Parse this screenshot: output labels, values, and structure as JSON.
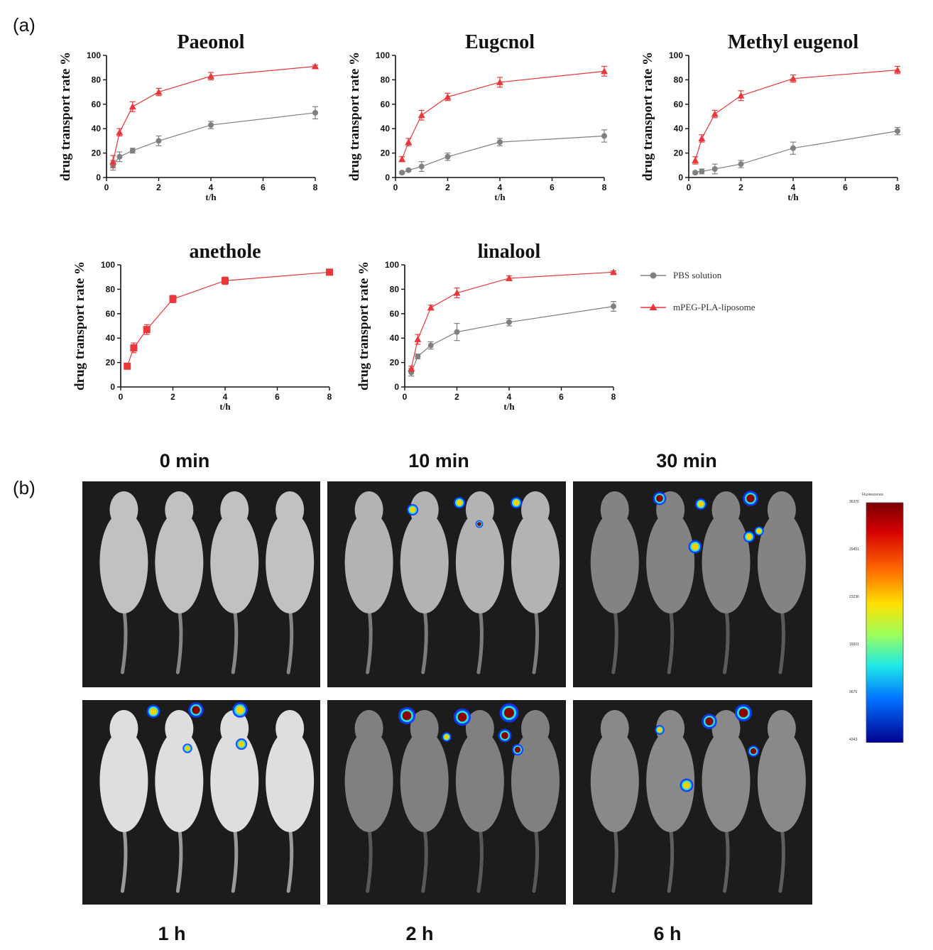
{
  "panels": {
    "a": "(a)",
    "b": "(b)"
  },
  "legend": {
    "entries": [
      {
        "name": "PBS solution",
        "color": "#808080",
        "marker": "circle"
      },
      {
        "name": "mPEG-PLA-liposome",
        "color": "#e8383b",
        "marker": "triangle"
      }
    ]
  },
  "colors": {
    "pbs": "#808080",
    "liposome": "#e8383b",
    "background": "#ffffff"
  },
  "chart_data": [
    {
      "type": "line",
      "title": "Paeonol",
      "xlabel": "t/h",
      "ylabel": "drug transport rate %",
      "xlim": [
        0,
        8
      ],
      "ylim": [
        0,
        100
      ],
      "xticks": [
        0,
        2,
        4,
        6,
        8
      ],
      "yticks": [
        0,
        20,
        40,
        60,
        80,
        100
      ],
      "series": [
        {
          "name": "PBS solution",
          "marker": "circle",
          "color": "#808080",
          "x": [
            0.25,
            0.5,
            1,
            2,
            4,
            8
          ],
          "y": [
            10,
            17,
            22,
            30,
            43,
            53
          ],
          "err": [
            4,
            4,
            2,
            4,
            3,
            5
          ]
        },
        {
          "name": "mPEG-PLA-liposome",
          "marker": "triangle",
          "color": "#e8383b",
          "x": [
            0.25,
            0.5,
            1,
            2,
            4,
            8
          ],
          "y": [
            13,
            37,
            58,
            70,
            83,
            91
          ],
          "err": [
            5,
            3,
            4,
            3,
            3,
            1
          ]
        }
      ]
    },
    {
      "type": "line",
      "title": "Eugcnol",
      "xlabel": "t/h",
      "ylabel": "drug transport rate %",
      "xlim": [
        0,
        8
      ],
      "ylim": [
        0,
        100
      ],
      "xticks": [
        0,
        2,
        4,
        6,
        8
      ],
      "yticks": [
        0,
        20,
        40,
        60,
        80,
        100
      ],
      "series": [
        {
          "name": "PBS solution",
          "marker": "circle",
          "color": "#808080",
          "x": [
            0.25,
            0.5,
            1,
            2,
            4,
            8
          ],
          "y": [
            4,
            6,
            9,
            17,
            29,
            34
          ],
          "err": [
            1,
            1,
            4,
            3,
            3,
            5
          ]
        },
        {
          "name": "mPEG-PLA-liposome",
          "marker": "triangle",
          "color": "#e8383b",
          "x": [
            0.25,
            0.5,
            1,
            2,
            4,
            8
          ],
          "y": [
            15,
            29,
            51,
            66,
            78,
            87
          ],
          "err": [
            2,
            3,
            4,
            3,
            4,
            4
          ]
        }
      ]
    },
    {
      "type": "line",
      "title": "Methyl eugenol",
      "xlabel": "t/h",
      "ylabel": "drug transport rate %",
      "xlim": [
        0,
        8
      ],
      "ylim": [
        0,
        100
      ],
      "xticks": [
        0,
        2,
        4,
        6,
        8
      ],
      "yticks": [
        0,
        20,
        40,
        60,
        80,
        100
      ],
      "series": [
        {
          "name": "PBS solution",
          "marker": "circle",
          "color": "#808080",
          "x": [
            0.25,
            0.5,
            1,
            2,
            4,
            8
          ],
          "y": [
            4,
            5,
            7,
            11,
            24,
            38
          ],
          "err": [
            1,
            2,
            4,
            3,
            5,
            3
          ]
        },
        {
          "name": "mPEG-PLA-liposome",
          "marker": "triangle",
          "color": "#e8383b",
          "x": [
            0.25,
            0.5,
            1,
            2,
            4,
            8
          ],
          "y": [
            14,
            32,
            52,
            67,
            81,
            88
          ],
          "err": [
            3,
            3,
            3,
            4,
            3,
            3
          ]
        }
      ]
    },
    {
      "type": "line",
      "title": "anethole",
      "xlabel": "t/h",
      "ylabel": "drug transport rate %",
      "xlim": [
        0,
        8
      ],
      "ylim": [
        0,
        100
      ],
      "xticks": [
        0,
        2,
        4,
        6,
        8
      ],
      "yticks": [
        0,
        20,
        40,
        60,
        80,
        100
      ],
      "series": [
        {
          "name": "mPEG-PLA-liposome",
          "marker": "square",
          "color": "#e8383b",
          "x": [
            0.25,
            0.5,
            1,
            2,
            4,
            8
          ],
          "y": [
            17,
            32,
            47,
            72,
            87,
            94
          ],
          "err": [
            2,
            4,
            4,
            3,
            3,
            2
          ]
        }
      ]
    },
    {
      "type": "line",
      "title": "linalool",
      "xlabel": "t/h",
      "ylabel": "drug transport rate %",
      "xlim": [
        0,
        8
      ],
      "ylim": [
        0,
        100
      ],
      "xticks": [
        0,
        2,
        4,
        6,
        8
      ],
      "yticks": [
        0,
        20,
        40,
        60,
        80,
        100
      ],
      "series": [
        {
          "name": "PBS solution",
          "marker": "circle",
          "color": "#808080",
          "x": [
            0.25,
            0.5,
            1,
            2,
            4,
            8
          ],
          "y": [
            12,
            25,
            34,
            45,
            53,
            66
          ],
          "err": [
            3,
            2,
            3,
            7,
            3,
            4
          ]
        },
        {
          "name": "mPEG-PLA-liposome",
          "marker": "triangle",
          "color": "#e8383b",
          "x": [
            0.25,
            0.5,
            1,
            2,
            4,
            8
          ],
          "y": [
            15,
            39,
            65,
            77,
            89,
            94
          ],
          "err": [
            2,
            4,
            2,
            4,
            2,
            1
          ]
        }
      ]
    }
  ],
  "imaging": {
    "time_labels": [
      "0 min",
      "10 min",
      "30 min",
      "1 h",
      "2 h",
      "6 h"
    ],
    "frames": [
      {
        "time": "0 min",
        "brightness": 0.78
      },
      {
        "time": "10 min",
        "brightness": 0.7
      },
      {
        "time": "30 min",
        "brightness": 0.42
      },
      {
        "time": "1 h",
        "brightness": 0.95
      },
      {
        "time": "2 h",
        "brightness": 0.4
      },
      {
        "time": "6 h",
        "brightness": 0.45
      }
    ],
    "scale": {
      "title": "Fluorescence",
      "ticks": [
        "36376",
        "29451",
        "23236",
        "16001",
        "9676",
        "4343"
      ]
    }
  }
}
